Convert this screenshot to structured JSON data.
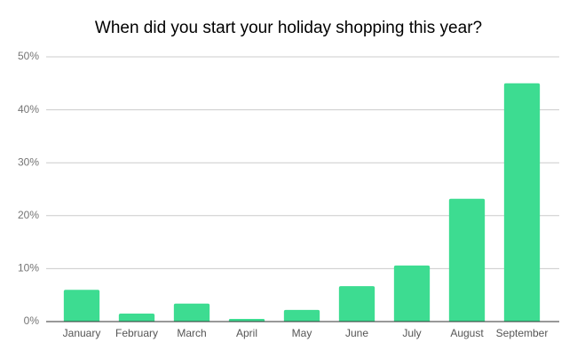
{
  "chart_data": {
    "type": "bar",
    "title": "When did you start your holiday shopping this year?",
    "categories": [
      "January",
      "February",
      "March",
      "April",
      "May",
      "June",
      "July",
      "August",
      "September"
    ],
    "values": [
      6.0,
      1.5,
      3.4,
      0.5,
      2.2,
      6.7,
      10.6,
      23.2,
      45.0
    ],
    "color": "#3ddc91",
    "ylim": [
      0,
      50
    ],
    "yticks": [
      {
        "value": 0,
        "label": "0%"
      },
      {
        "value": 10,
        "label": "10%"
      },
      {
        "value": 20,
        "label": "20%"
      },
      {
        "value": 30,
        "label": "30%"
      },
      {
        "value": 40,
        "label": "40%"
      },
      {
        "value": 50,
        "label": "50%"
      }
    ],
    "grid": true
  }
}
